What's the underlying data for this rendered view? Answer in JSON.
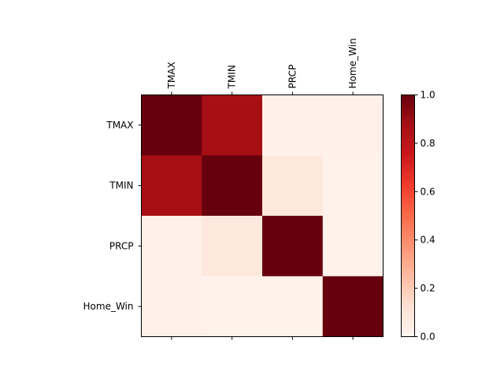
{
  "chart_data": {
    "type": "heatmap",
    "title": "",
    "xlabel": "",
    "ylabel": "",
    "x_categories": [
      "TMAX",
      "TMIN",
      "PRCP",
      "Home_Win"
    ],
    "y_categories": [
      "TMAX",
      "TMIN",
      "PRCP",
      "Home_Win"
    ],
    "matrix": [
      [
        1.0,
        0.87,
        0.03,
        0.03
      ],
      [
        0.87,
        1.0,
        0.08,
        0.02
      ],
      [
        0.03,
        0.08,
        1.0,
        0.02
      ],
      [
        0.03,
        0.02,
        0.02,
        1.0
      ]
    ],
    "value_range": [
      0.0,
      1.0
    ],
    "colormap": "Reds",
    "colorbar": {
      "ticks": [
        0.0,
        0.2,
        0.4,
        0.6,
        0.8,
        1.0
      ],
      "tick_labels": [
        "0.0",
        "0.2",
        "0.4",
        "0.6",
        "0.8",
        "1.0"
      ]
    },
    "x_tick_position": "top",
    "grid": false
  }
}
